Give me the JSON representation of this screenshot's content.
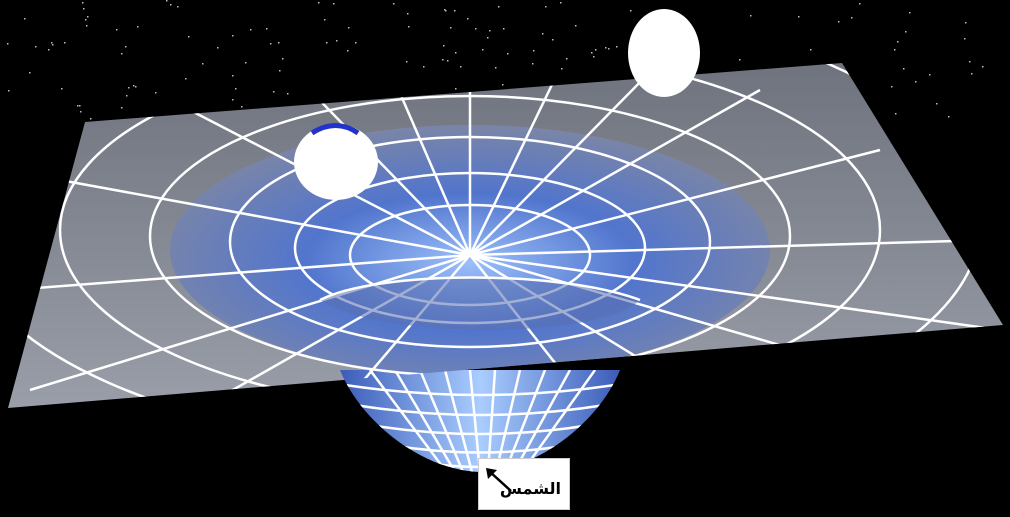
{
  "labels": {
    "sun": "الشمس"
  },
  "colors": {
    "background": "#000000",
    "sheet": "#8a8f9c",
    "well": "#5b7ccc",
    "grid": "#ffffff",
    "planet": "#ffffff",
    "planet_edge": "#2233cc"
  },
  "icons": {
    "pointer": "arrow-up-left-icon"
  }
}
